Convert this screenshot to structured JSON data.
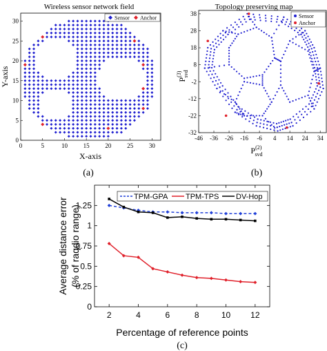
{
  "colors": {
    "sensor": "#1f1fd0",
    "anchor": "#e0202a",
    "tpm_gpa": "#1f3fd8",
    "tpm_tps": "#e0202a",
    "dv_hop": "#000000"
  },
  "chart_data": [
    {
      "type": "scatter",
      "title": "Wireless sensor network field",
      "xlabel": "X-axis",
      "ylabel": "Y-axis",
      "xlim": [
        0,
        32
      ],
      "ylim": [
        0,
        32
      ],
      "xticks": [
        "0",
        "5",
        "10",
        "15",
        "20",
        "25",
        "30"
      ],
      "yticks": [
        "0",
        "5",
        "10",
        "15",
        "20",
        "25",
        "30"
      ],
      "field": {
        "center": [
          15.5,
          15.5
        ],
        "radius": 15.5,
        "step": 1,
        "holes": [
          {
            "center": [
              8,
              20.5
            ],
            "radius": 5
          },
          {
            "center": [
              23,
              15.5
            ],
            "radius": 5.5
          },
          {
            "center": [
              8,
              9
            ],
            "radius": 4
          }
        ]
      },
      "legend": [
        "Sensor",
        "Anchor"
      ],
      "legend_position": "top-right",
      "anchors": [
        [
          5,
          26
        ],
        [
          26,
          25
        ],
        [
          1,
          19
        ],
        [
          28,
          19
        ],
        [
          28,
          13
        ],
        [
          28,
          8
        ],
        [
          5,
          4
        ],
        [
          20,
          3
        ]
      ],
      "caption": "(a)"
    },
    {
      "type": "scatter",
      "title": "Topology preserving map",
      "xlabel": "P",
      "xlabel_sup": "(2)",
      "xlabel_sub": "svd",
      "ylabel": "P",
      "ylabel_sup": "(3)",
      "ylabel_sub": "svd",
      "xlim": [
        -46,
        38
      ],
      "ylim": [
        -32,
        40
      ],
      "xticks": [
        "-46",
        "-36",
        "-26",
        "-16",
        "-6",
        "4",
        "14",
        "24",
        "34"
      ],
      "yticks": [
        "38",
        "28",
        "18",
        "8",
        "-2",
        "-12",
        "-22",
        "-32"
      ],
      "legend": [
        "Sensor",
        "Anchor"
      ],
      "legend_position": "top-right",
      "anchors": [
        [
          -13,
          38
        ],
        [
          -40,
          22
        ],
        [
          -28,
          -22
        ],
        [
          12,
          -29
        ],
        [
          33,
          -3
        ]
      ],
      "caption": "(b)"
    },
    {
      "type": "line",
      "xlabel": "Percentage of reference points",
      "ylabel": "Average distance error",
      "ylabel2": "(% of raqdio range)",
      "xlim": [
        1,
        13
      ],
      "ylim": [
        0,
        1.5
      ],
      "xticks": [
        "2",
        "4",
        "6",
        "8",
        "10",
        "12"
      ],
      "yticks": [
        "0",
        "0.25",
        "0.5",
        "0.75",
        "1",
        "1.25"
      ],
      "x": [
        2,
        3,
        4,
        5,
        6,
        7,
        8,
        9,
        10,
        11,
        12
      ],
      "series": [
        {
          "name": "TPM-GPA",
          "values": [
            1.25,
            1.22,
            1.19,
            1.17,
            1.17,
            1.16,
            1.16,
            1.16,
            1.15,
            1.15,
            1.15
          ]
        },
        {
          "name": "TPM-TPS",
          "values": [
            0.78,
            0.63,
            0.61,
            0.47,
            0.43,
            0.39,
            0.36,
            0.35,
            0.33,
            0.31,
            0.3
          ]
        },
        {
          "name": "DV-Hop",
          "values": [
            1.33,
            1.23,
            1.17,
            1.16,
            1.1,
            1.11,
            1.09,
            1.08,
            1.08,
            1.07,
            1.06
          ]
        }
      ],
      "legend_position": "top",
      "caption": "(c)"
    }
  ]
}
